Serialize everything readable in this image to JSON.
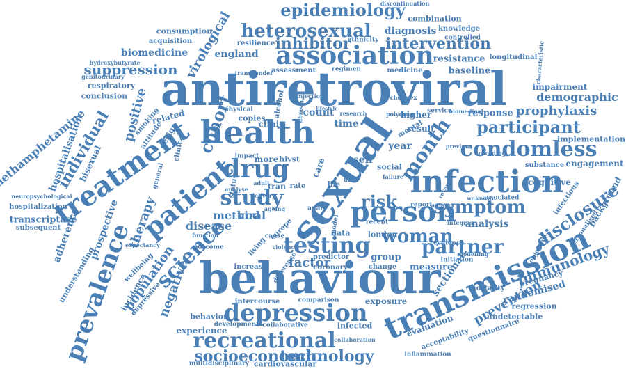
{
  "cloud": {
    "color": "#4a7fb5",
    "words": [
      "antiretroviral",
      "behaviour",
      "sexual",
      "health",
      "transmission",
      "infection",
      "treatment",
      "association",
      "person",
      "patient",
      "drug",
      "depression",
      "prevalence",
      "testing",
      "study",
      "condomless",
      "science",
      "recreational",
      "heterosexual",
      "participant",
      "epidemiology",
      "risk",
      "partner",
      "symptom",
      "woman",
      "month",
      "cohort",
      "socioeconomic",
      "technology",
      "suppression",
      "individual",
      "disclosure",
      "inhibitor",
      "intervention",
      "immunology",
      "prevention",
      "population",
      "demographic",
      "prophylaxis",
      "virological",
      "positive",
      "therapy",
      "negative",
      "factor",
      "diagnosis",
      "methamphetamine",
      "hospitalisation",
      "prospective",
      "adherence",
      "transcriptase",
      "biomedicine",
      "consumption",
      "england",
      "acquisition",
      "resilience",
      "resistance",
      "baseline",
      "analysis",
      "disease",
      "method",
      "viral",
      "load",
      "clinic",
      "count",
      "time",
      "self",
      "year",
      "result",
      "higher",
      "response",
      "participant",
      "related",
      "design",
      "smoking",
      "attitude",
      "bisexual",
      "exposure",
      "evaluation",
      "acceptability",
      "inflammation",
      "questionnaire",
      "undetectable",
      "randomised",
      "pregnancy",
      "regression",
      "sectional",
      "cardiovascular",
      "multidisciplinary",
      "intercourse",
      "comparison",
      "infected",
      "collaborative",
      "experience",
      "behavior",
      "wellbeing",
      "depressive",
      "incidence",
      "engagement",
      "substance",
      "implementation",
      "background",
      "infectious",
      "cognitive",
      "impairment",
      "longitudinal",
      "combination",
      "knowledge",
      "controlled",
      "discontinuation",
      "ethnicity",
      "regimen",
      "medicine",
      "assessment",
      "respiratory",
      "conclusion",
      "genitourinary",
      "hydroxybutyrate",
      "understanding",
      "hospitalization",
      "subsequent",
      "neuropsychological",
      "expectancy",
      "function",
      "outcome",
      "increase",
      "measure",
      "change",
      "group",
      "london",
      "social",
      "data",
      "initiation",
      "evidence",
      "report",
      "support",
      "associated",
      "unknown",
      "personalised",
      "objective",
      "mortality",
      "mental",
      "service",
      "previous",
      "according",
      "failure",
      "reverse",
      "more",
      "hivst",
      "care",
      "rate",
      "impact",
      "tran",
      "status",
      "clinical",
      "general",
      "copies",
      "alcohol",
      "physical",
      "gbmsm",
      "injection",
      "lifestyle",
      "research",
      "polydrug",
      "chemsex",
      "brief",
      "cross",
      "life",
      "anal",
      "recent",
      "model",
      "predictor",
      "coronary",
      "development",
      "collaboration",
      "living",
      "europe",
      "ageing",
      "adult",
      "delivery",
      "analyse",
      "cause",
      "violence",
      "difference",
      "biomedical",
      "transgender",
      "characteristic",
      "confidence",
      "modelling",
      "integrase"
    ]
  }
}
